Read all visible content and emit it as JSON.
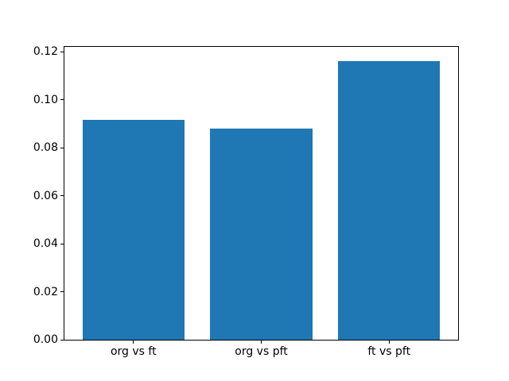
{
  "chart_data": {
    "type": "bar",
    "categories": [
      "org vs ft",
      "org vs pft",
      "ft vs pft"
    ],
    "values": [
      0.0915,
      0.0878,
      0.1161
    ],
    "title": "",
    "xlabel": "",
    "ylabel": "",
    "ylim": [
      0,
      0.122
    ],
    "yticks": [
      0.0,
      0.02,
      0.04,
      0.06,
      0.08,
      0.1,
      0.12
    ],
    "ytick_labels": [
      "0.00",
      "0.02",
      "0.04",
      "0.06",
      "0.08",
      "0.10",
      "0.12"
    ],
    "grid": false,
    "legend": null,
    "bar_color": "#1f77b4",
    "bar_width_fraction": 0.8,
    "spine_color": "#000000",
    "text_color": "#000000",
    "background_color": "#ffffff"
  }
}
